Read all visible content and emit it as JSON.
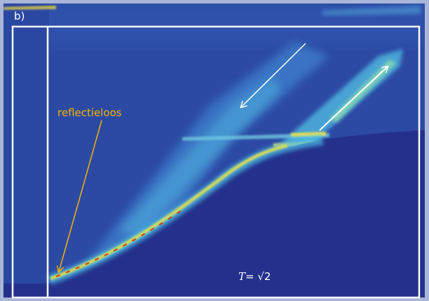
{
  "panel_label": "b)",
  "annotation": "reflectieloos",
  "formula": {
    "symbol": "T",
    "rest": "= √2"
  }
}
